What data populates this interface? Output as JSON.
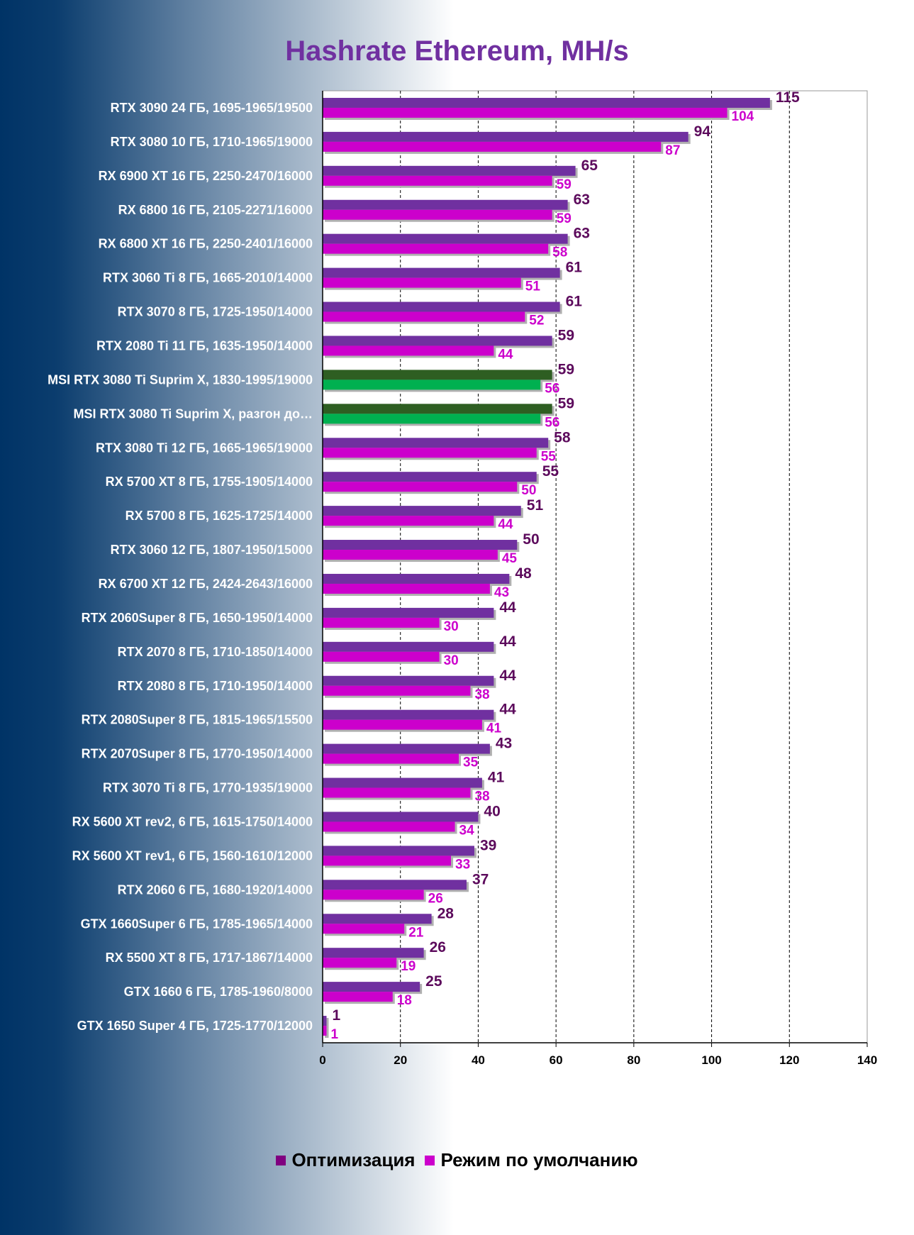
{
  "chart_data": {
    "type": "bar",
    "orientation": "horizontal",
    "title": "Hashrate Ethereum, MH/s",
    "xlim": [
      0,
      140
    ],
    "xticks": [
      0,
      20,
      40,
      60,
      80,
      100,
      120,
      140
    ],
    "grid": "vertical dashed",
    "legend_position": "bottom",
    "categories": [
      "RTX 3090 24 ГБ, 1695-1965/19500",
      "RTX 3080 10 ГБ, 1710-1965/19000",
      "RX 6900 XT 16 ГБ, 2250-2470/16000",
      "RX 6800 16 ГБ, 2105-2271/16000",
      "RX 6800 XT 16 ГБ, 2250-2401/16000",
      "RTX 3060 Ti 8 ГБ, 1665-2010/14000",
      "RTX 3070 8 ГБ, 1725-1950/14000",
      "RTX 2080 Ti 11 ГБ, 1635-1950/14000",
      "MSI RTX 3080 Ti Suprim X, 1830-1995/19000",
      "MSI RTX 3080 Ti Suprim X, разгон до…",
      "RTX 3080 Ti 12 ГБ, 1665-1965/19000",
      "RX 5700 XT 8 ГБ, 1755-1905/14000",
      "RX 5700 8 ГБ, 1625-1725/14000",
      "RTX 3060 12 ГБ, 1807-1950/15000",
      "RX 6700 XT 12 ГБ, 2424-2643/16000",
      "RTX 2060Super 8 ГБ, 1650-1950/14000",
      "RTX 2070 8 ГБ, 1710-1850/14000",
      "RTX 2080 8 ГБ, 1710-1950/14000",
      "RTX 2080Super 8 ГБ, 1815-1965/15500",
      "RTX 2070Super 8 ГБ, 1770-1950/14000",
      "RTX 3070 Ti 8 ГБ, 1770-1935/19000",
      "RX 5600 XT rev2, 6 ГБ, 1615-1750/14000",
      "RX 5600 XT rev1, 6 ГБ, 1560-1610/12000",
      "RTX 2060 6 ГБ, 1680-1920/14000",
      "GTX 1660Super 6 ГБ, 1785-1965/14000",
      "RX 5500 XT 8 ГБ, 1717-1867/14000",
      "GTX 1660 6 ГБ, 1785-1960/8000",
      "GTX 1650 Super 4 ГБ, 1725-1770/12000"
    ],
    "highlighted_categories": [
      8,
      9
    ],
    "series": [
      {
        "name": "Оптимизация",
        "color": "#7030a0",
        "highlight_color": "#2e5e22",
        "values": [
          115,
          94,
          65,
          63,
          63,
          61,
          61,
          59,
          59,
          59,
          58,
          55,
          51,
          50,
          48,
          44,
          44,
          44,
          44,
          43,
          41,
          40,
          39,
          37,
          28,
          26,
          25,
          1
        ]
      },
      {
        "name": "Режим по умолчанию",
        "color": "#cc00cc",
        "highlight_color": "#00b050",
        "values": [
          104,
          87,
          59,
          59,
          58,
          51,
          52,
          44,
          56,
          56,
          55,
          50,
          44,
          45,
          43,
          30,
          30,
          38,
          41,
          35,
          38,
          34,
          33,
          26,
          21,
          19,
          18,
          1
        ]
      }
    ]
  },
  "legend": {
    "item_a": "Оптимизация",
    "item_b": "Режим по умолчанию",
    "color_a": "#800080",
    "color_b": "#cc00cc"
  }
}
